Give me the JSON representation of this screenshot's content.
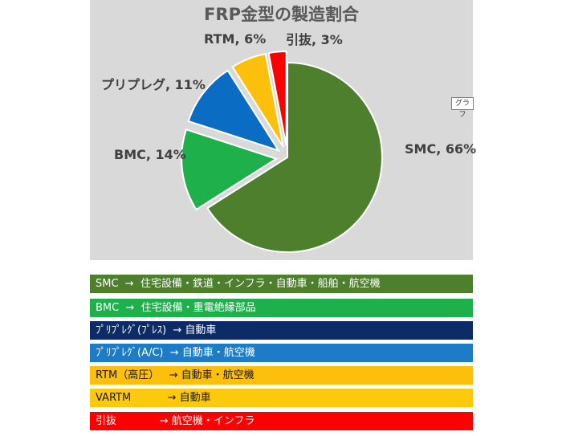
{
  "chart_data": {
    "type": "pie",
    "title": "FRP金型の製造割合",
    "slices": [
      {
        "name": "SMC",
        "value": 66,
        "label": "SMC, 66%",
        "color": "#4e7f2d",
        "exploded": false
      },
      {
        "name": "BMC",
        "value": 14,
        "label": "BMC, 14%",
        "color": "#1db04b",
        "exploded": true
      },
      {
        "name": "プリプレグ",
        "value": 11,
        "label": "プリプレグ, 11%",
        "color": "#0b6cc4",
        "exploded": true
      },
      {
        "name": "RTM",
        "value": 6,
        "label": "RTM, 6%",
        "color": "#fcbf0c",
        "exploded": true
      },
      {
        "name": "引抜",
        "value": 3,
        "label": "引抜, 3%",
        "color": "#ff0000",
        "exploded": true
      }
    ],
    "background": "#d9d9d9"
  },
  "graph_tag": "グラフ",
  "legend": [
    {
      "text": "SMC  →  住宅設備・鉄道・インフラ・自動車・船舶・航空機",
      "bg": "#4e7f2d",
      "color": "#ffffff"
    },
    {
      "text": "BMC  →  住宅設備・重電絶縁部品",
      "bg": "#1db04b",
      "color": "#ffffff"
    },
    {
      "text": "ﾌﾟﾘﾌﾟﾚｸﾞ(ﾌﾟﾚｽ)  → 自動車",
      "bg": "#0d2b66",
      "color": "#ffffff"
    },
    {
      "text": "ﾌﾟﾘﾌﾟﾚｸﾞ(A/C)  → 自動車・航空機",
      "bg": "#1e7cc6",
      "color": "#ffffff"
    },
    {
      "text": "RTM（高圧）   → 自動車・航空機",
      "bg": "#fcbf0c",
      "color": "#1a1a1a"
    },
    {
      "text": "VARTM           → 自動車",
      "bg": "#fcc90c",
      "color": "#1a1a1a"
    },
    {
      "text": "引抜             → 航空機・インフラ",
      "bg": "#ff0000",
      "color": "#ffffff"
    }
  ]
}
